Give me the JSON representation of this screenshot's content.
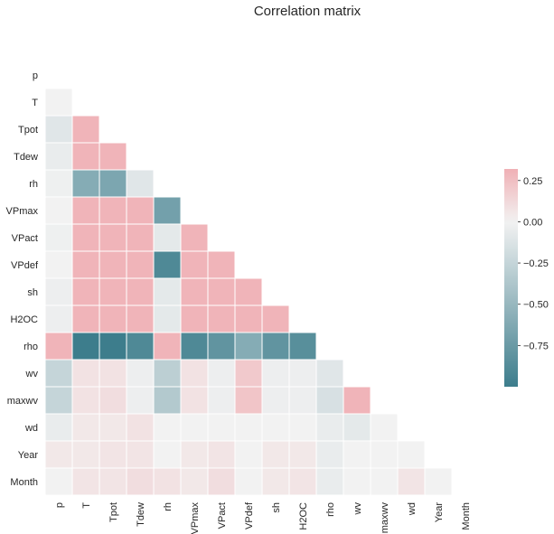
{
  "chart_data": {
    "type": "heatmap",
    "title": "Correlation matrix",
    "variables": [
      "p",
      "T",
      "Tpot",
      "Tdew",
      "rh",
      "VPmax",
      "VPact",
      "VPdef",
      "sh",
      "H2OC",
      "rho",
      "wv",
      "maxwv",
      "wd",
      "Year",
      "Month"
    ],
    "mask": "upper-triangle-including-diagonal",
    "matrix": [
      [],
      [
        0.0
      ],
      [
        -0.1,
        0.3
      ],
      [
        -0.05,
        0.3,
        0.3
      ],
      [
        -0.02,
        -0.6,
        -0.65,
        -0.1
      ],
      [
        0.0,
        0.3,
        0.3,
        0.3,
        -0.7
      ],
      [
        -0.02,
        0.3,
        0.3,
        0.3,
        -0.08,
        0.3
      ],
      [
        0.0,
        0.3,
        0.3,
        0.3,
        -0.9,
        0.3,
        0.3
      ],
      [
        -0.03,
        0.3,
        0.3,
        0.3,
        -0.08,
        0.3,
        0.3,
        0.3
      ],
      [
        -0.03,
        0.3,
        0.3,
        0.3,
        -0.08,
        0.3,
        0.3,
        0.3,
        0.3
      ],
      [
        0.3,
        -1.0,
        -1.0,
        -0.9,
        0.3,
        -0.9,
        -0.8,
        -0.6,
        -0.8,
        -0.85
      ],
      [
        -0.25,
        0.08,
        0.08,
        -0.03,
        -0.3,
        0.08,
        -0.03,
        0.2,
        -0.03,
        -0.03,
        -0.1
      ],
      [
        -0.25,
        0.08,
        0.1,
        -0.03,
        -0.35,
        0.08,
        -0.03,
        0.22,
        -0.03,
        -0.03,
        -0.15,
        0.3
      ],
      [
        -0.05,
        0.05,
        0.05,
        0.08,
        0.0,
        0.0,
        0.0,
        0.0,
        0.0,
        0.0,
        -0.05,
        -0.08,
        0.0
      ],
      [
        0.05,
        0.05,
        0.07,
        0.07,
        0.0,
        0.05,
        0.07,
        0.0,
        0.05,
        0.05,
        -0.05,
        0.0,
        0.0,
        0.0
      ],
      [
        0.0,
        0.07,
        0.07,
        0.1,
        0.08,
        0.05,
        0.1,
        0.0,
        0.05,
        0.07,
        -0.05,
        0.0,
        0.0,
        0.07,
        0.0
      ]
    ],
    "colorbar": {
      "range": [
        -1.0,
        0.32
      ],
      "ticks": [
        0.25,
        0.0,
        -0.25,
        -0.5,
        -0.75
      ],
      "tick_labels": [
        "0.25",
        "0.00",
        "−0.25",
        "−0.50",
        "−0.75"
      ]
    },
    "colors": {
      "negative_end": "#3d7d8c",
      "center": "#f2f2f2",
      "positive_end": "#f0b0b5"
    }
  }
}
